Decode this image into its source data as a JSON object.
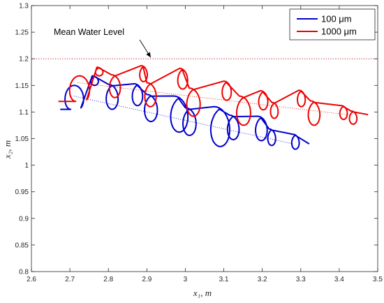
{
  "chart_data": {
    "type": "line",
    "title": "",
    "xlabel": "x₁, m",
    "ylabel": "x₂, m",
    "xlim": [
      2.6,
      3.5
    ],
    "ylim": [
      0.8,
      1.3
    ],
    "xticks": [
      "2.6",
      "2.7",
      "2.8",
      "2.9",
      "3",
      "3.1",
      "3.2",
      "3.3",
      "3.4",
      "3.5"
    ],
    "yticks": [
      "0.8",
      "0.85",
      "0.9",
      "0.95",
      "1",
      "1.05",
      "1.1",
      "1.15",
      "1.2",
      "1.25",
      "1.3"
    ],
    "grid": false,
    "legend_position": "top-right",
    "mean_water_level": 1.2,
    "annotation": {
      "text": "Mean Water Level",
      "arrow_to": [
        2.91,
        1.2
      ]
    },
    "series": [
      {
        "name": "100 μm",
        "color": "#0000cc",
        "style": "solid",
        "start": [
          2.675,
          1.105
        ],
        "end": [
          3.322,
          1.04
        ],
        "loops": [
          {
            "cx": 2.702,
            "top": 1.15,
            "bottom": 1.105,
            "start_phase": 3.14
          },
          {
            "cx": 2.758,
            "top": 1.168,
            "bottom": 1.15
          },
          {
            "cx": 2.8,
            "top": 1.152,
            "bottom": 1.105
          },
          {
            "cx": 2.867,
            "top": 1.153,
            "bottom": 1.112
          },
          {
            "cx": 2.9,
            "top": 1.133,
            "bottom": 1.082
          },
          {
            "cx": 2.97,
            "top": 1.13,
            "bottom": 1.062
          },
          {
            "cx": 3.0,
            "top": 1.108,
            "bottom": 1.056
          },
          {
            "cx": 3.075,
            "top": 1.11,
            "bottom": 1.035
          },
          {
            "cx": 3.115,
            "top": 1.094,
            "bottom": 1.048
          },
          {
            "cx": 3.188,
            "top": 1.092,
            "bottom": 1.046
          },
          {
            "cx": 3.218,
            "top": 1.068,
            "bottom": 1.037
          },
          {
            "cx": 3.28,
            "top": 1.058,
            "bottom": 1.03
          }
        ],
        "guide": [
          [
            2.71,
            1.13
          ],
          [
            3.28,
            1.04
          ]
        ]
      },
      {
        "name": "1000 μm",
        "color": "#ee0000",
        "style": "solid",
        "start": [
          2.67,
          1.12
        ],
        "end": [
          3.475,
          1.095
        ],
        "loops": [
          {
            "cx": 2.715,
            "top": 1.168,
            "bottom": 1.12,
            "start_phase": 3.14
          },
          {
            "cx": 2.77,
            "top": 1.184,
            "bottom": 1.168
          },
          {
            "cx": 2.808,
            "top": 1.17,
            "bottom": 1.127
          },
          {
            "cx": 2.885,
            "top": 1.187,
            "bottom": 1.157
          },
          {
            "cx": 2.9,
            "top": 1.155,
            "bottom": 1.11
          },
          {
            "cx": 2.985,
            "top": 1.182,
            "bottom": 1.143
          },
          {
            "cx": 3.01,
            "top": 1.145,
            "bottom": 1.092
          },
          {
            "cx": 3.1,
            "top": 1.158,
            "bottom": 1.122
          },
          {
            "cx": 3.14,
            "top": 1.13,
            "bottom": 1.075
          },
          {
            "cx": 3.195,
            "top": 1.14,
            "bottom": 1.104
          },
          {
            "cx": 3.225,
            "top": 1.118,
            "bottom": 1.088
          },
          {
            "cx": 3.295,
            "top": 1.141,
            "bottom": 1.11
          },
          {
            "cx": 3.325,
            "top": 1.121,
            "bottom": 1.075
          },
          {
            "cx": 3.405,
            "top": 1.112,
            "bottom": 1.086
          },
          {
            "cx": 3.43,
            "top": 1.102,
            "bottom": 1.077
          }
        ],
        "guide": [
          [
            2.72,
            1.155
          ],
          [
            3.42,
            1.095
          ]
        ]
      }
    ]
  }
}
